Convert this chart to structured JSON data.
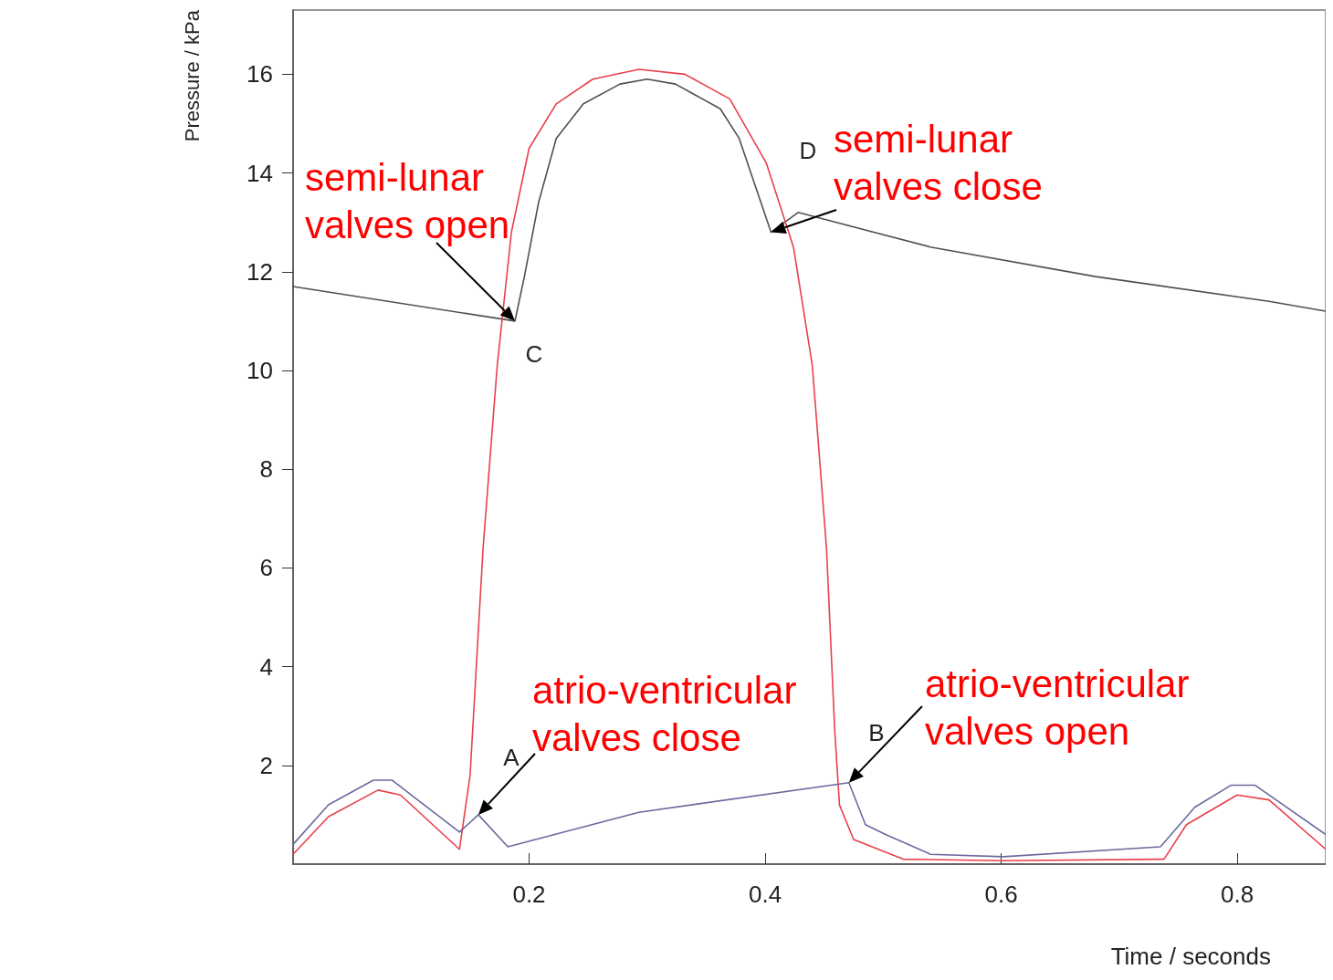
{
  "chart_data": {
    "type": "line",
    "xlabel": "Time / seconds",
    "ylabel": "Pressure / kPa",
    "xlim": [
      0,
      0.875
    ],
    "ylim": [
      0,
      17.3
    ],
    "xticks": [
      0.2,
      0.4,
      0.6,
      0.8
    ],
    "yticks": [
      2,
      4,
      6,
      8,
      10,
      12,
      14,
      16
    ],
    "grid": false,
    "marker": "none",
    "line_style": "solid",
    "series": [
      {
        "color": "#505050",
        "x": [
          0,
          0.188,
          0.196,
          0.208,
          0.223,
          0.246,
          0.277,
          0.3,
          0.324,
          0.362,
          0.378,
          0.405,
          0.428,
          0.54,
          0.68,
          0.827,
          0.875
        ],
        "values": [
          11.7,
          11.0,
          11.9,
          13.4,
          14.7,
          15.4,
          15.8,
          15.9,
          15.8,
          15.3,
          14.7,
          12.8,
          13.2,
          12.5,
          11.9,
          11.4,
          11.2
        ]
      },
      {
        "color": "#e8404a",
        "x": [
          0,
          0.03,
          0.072,
          0.091,
          0.141,
          0.15,
          0.161,
          0.173,
          0.185,
          0.2,
          0.223,
          0.254,
          0.293,
          0.332,
          0.37,
          0.401,
          0.424,
          0.44,
          0.452,
          0.459,
          0.463,
          0.475,
          0.517,
          0.602,
          0.738,
          0.757,
          0.8,
          0.827,
          0.875
        ],
        "values": [
          0.2,
          0.96,
          1.5,
          1.4,
          0.3,
          1.8,
          6.4,
          10.1,
          12.8,
          14.5,
          15.4,
          15.9,
          16.1,
          16.0,
          15.5,
          14.2,
          12.5,
          10.1,
          6.4,
          2.7,
          1.2,
          0.5,
          0.1,
          0.07,
          0.1,
          0.8,
          1.4,
          1.3,
          0.3
        ]
      },
      {
        "color": "#6a6aa0",
        "x": [
          0,
          0.03,
          0.068,
          0.084,
          0.141,
          0.157,
          0.182,
          0.293,
          0.471,
          0.485,
          0.502,
          0.54,
          0.602,
          0.735,
          0.764,
          0.795,
          0.815,
          0.875
        ],
        "values": [
          0.4,
          1.2,
          1.7,
          1.7,
          0.65,
          1.0,
          0.35,
          1.05,
          1.65,
          0.8,
          0.6,
          0.2,
          0.15,
          0.35,
          1.15,
          1.6,
          1.6,
          0.6
        ]
      }
    ],
    "annotations": [
      {
        "text": "semi-lunar\nvalves open",
        "x": 0.188,
        "y": 11.0
      },
      {
        "text": "semi-lunar\nvalves close",
        "x": 0.405,
        "y": 12.8
      },
      {
        "text": "atrio-ventricular\nvalves close",
        "x": 0.157,
        "y": 1.0
      },
      {
        "text": "atrio-ventricular\nvalves open",
        "x": 0.471,
        "y": 1.65
      },
      "A",
      "B",
      "C",
      "D"
    ]
  }
}
